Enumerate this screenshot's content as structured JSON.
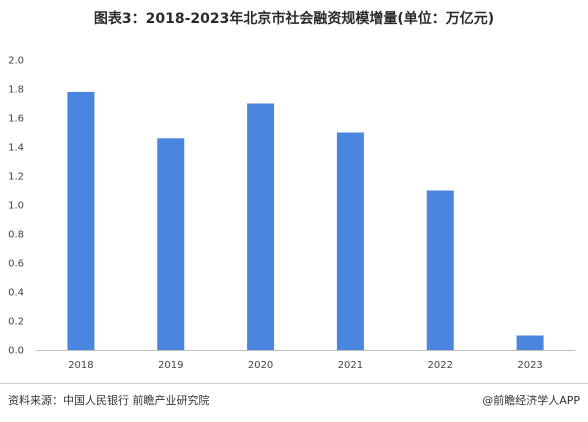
{
  "title": "图表3：2018-2023年北京市社会融资规模增量(单位：万亿元)",
  "source": "资料来源：中国人民银行 前瞻产业研究院",
  "credit": "@前瞻经济学人APP",
  "chart_data": {
    "type": "bar",
    "title": "图表3：2018-2023年北京市社会融资规模增量(单位：万亿元)",
    "categories": [
      "2018",
      "2019",
      "2020",
      "2021",
      "2022",
      "2023"
    ],
    "values": [
      1.78,
      1.46,
      1.7,
      1.5,
      1.1,
      0.1
    ],
    "y_ticks": [
      "0.0",
      "0.2",
      "0.4",
      "0.6",
      "0.8",
      "1.0",
      "1.2",
      "1.4",
      "1.6",
      "1.8",
      "2.0"
    ],
    "ylim": [
      0,
      2.0
    ],
    "xlabel": "",
    "ylabel": "",
    "grid": false,
    "bar_color": "#4a86e0"
  }
}
